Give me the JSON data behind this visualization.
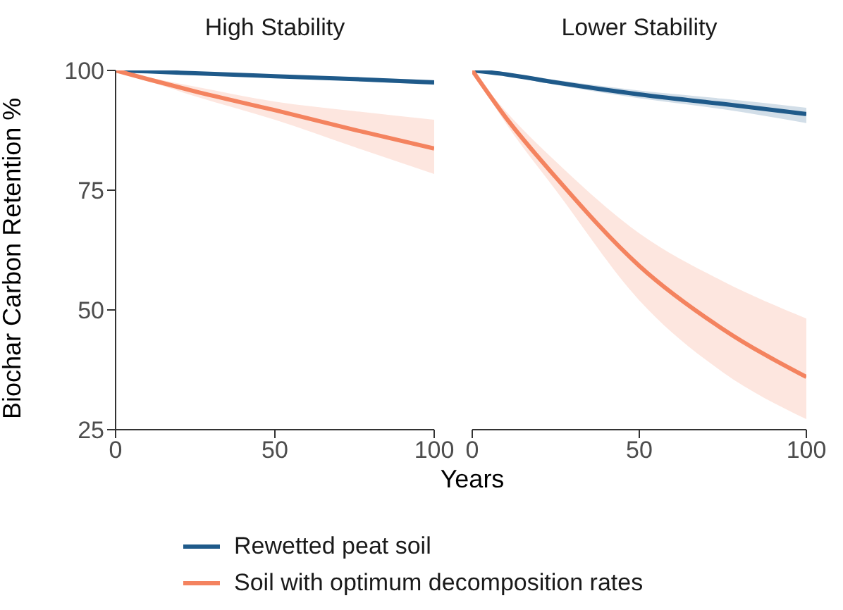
{
  "chart_data": [
    {
      "type": "line",
      "title": "High Stability",
      "xlabel": "Years",
      "ylabel": "Biochar Carbon Retention %",
      "x": [
        0,
        10,
        25,
        50,
        75,
        100
      ],
      "xlim": [
        0,
        100
      ],
      "xticks": [
        0,
        50,
        100
      ],
      "ylim": [
        25,
        100
      ],
      "yticks": [
        25,
        50,
        75,
        100
      ],
      "legend": "bottom",
      "series": [
        {
          "name": "Rewetted peat soil",
          "color": "#1f5a8a",
          "values": [
            100,
            99.8,
            99.4,
            98.8,
            98.2,
            97.5
          ],
          "lower": [
            100,
            99.7,
            99.2,
            98.5,
            97.8,
            97
          ],
          "upper": [
            100,
            99.9,
            99.6,
            99.1,
            98.6,
            98
          ]
        },
        {
          "name": "Soil with optimum decomposition rates",
          "color": "#f4835f",
          "values": [
            100,
            98.2,
            95.6,
            91.7,
            87.6,
            83.7
          ],
          "lower": [
            100,
            97.8,
            94.6,
            89.7,
            84,
            78.4
          ],
          "upper": [
            100,
            98.6,
            96.6,
            93.5,
            91.5,
            89.7
          ]
        }
      ]
    },
    {
      "type": "line",
      "title": "Lower Stability",
      "x": [
        0,
        10,
        25,
        50,
        75,
        100
      ],
      "xlim": [
        0,
        100
      ],
      "xticks": [
        0,
        50,
        100
      ],
      "ylim": [
        25,
        100
      ],
      "yticks": [
        25,
        50,
        75,
        100
      ],
      "tick_labels": "x",
      "series": [
        {
          "color": "#1f5a8a",
          "values": [
            100,
            99.2,
            97.5,
            95,
            93,
            90.9
          ],
          "lower": [
            100,
            98.9,
            97,
            94.2,
            91.9,
            89
          ],
          "upper": [
            100,
            99.5,
            98,
            95.8,
            94.1,
            92.2
          ]
        },
        {
          "color": "#f4835f",
          "values": [
            100,
            90.2,
            77.7,
            59.2,
            46,
            36
          ],
          "lower": [
            100,
            89,
            75,
            52,
            37,
            27.2
          ],
          "upper": [
            100,
            91.5,
            81,
            66,
            56,
            48.2
          ]
        }
      ]
    }
  ]
}
